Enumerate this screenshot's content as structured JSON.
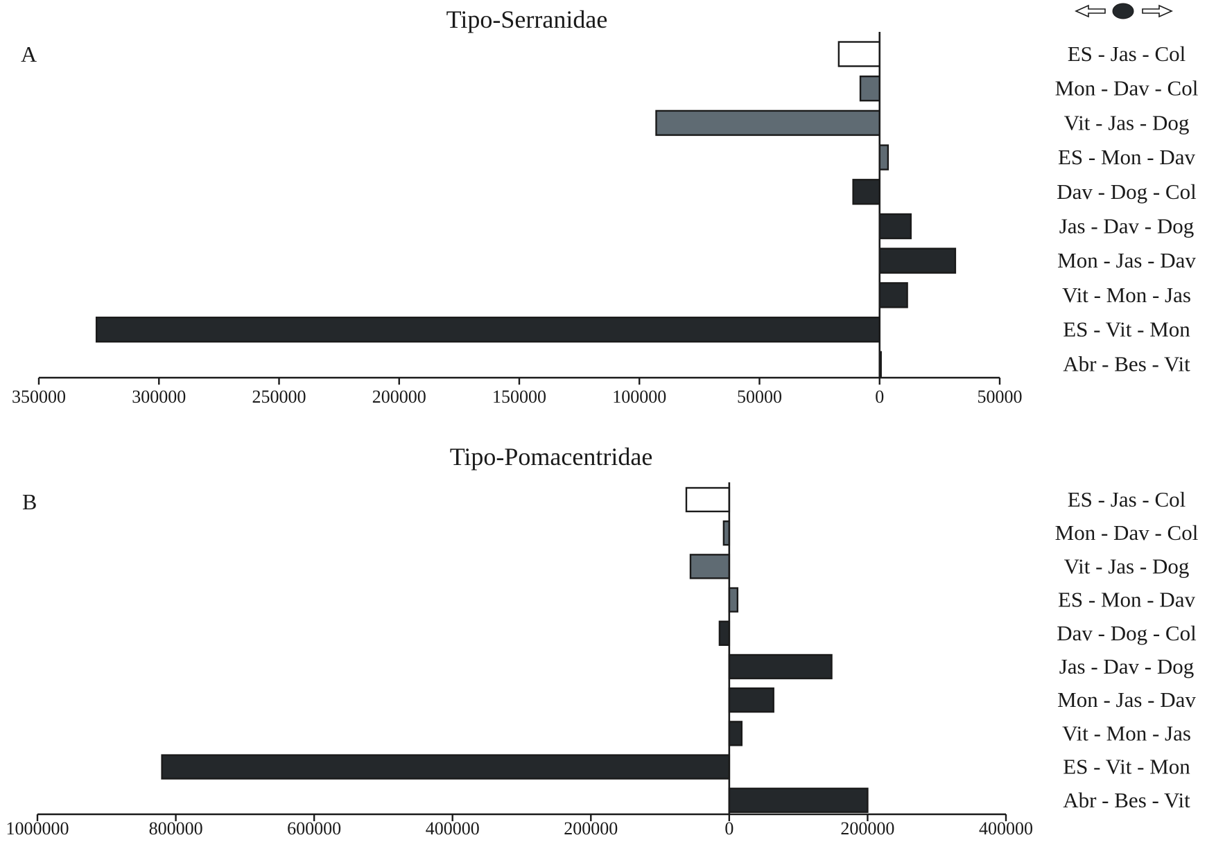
{
  "legend": {
    "icons": [
      "left-arrow-icon",
      "black-dot-icon",
      "right-arrow-icon"
    ]
  },
  "colors": {
    "white_bar": "#ffffff",
    "gray_bar": "#5f6b73",
    "black_bar": "#24282b",
    "stroke": "#1a1a1a"
  },
  "chart_data": [
    {
      "type": "bar",
      "orientation": "horizontal",
      "title": "Tipo-Serranidae",
      "panel": "A",
      "categories": [
        "ES - Jas - Col",
        "Mon - Dav - Col",
        "Vit - Jas - Dog",
        "ES - Mon - Dav",
        "Dav - Dog - Col",
        "Jas - Dav - Dog",
        "Mon - Jas - Dav",
        "Vit - Mon - Jas",
        "ES - Vit - Mon",
        "Abr - Bes - Vit"
      ],
      "values": [
        -17000,
        -8000,
        -93000,
        3500,
        -11000,
        13000,
        31500,
        11500,
        -326000,
        500
      ],
      "fill": [
        "white",
        "gray",
        "gray",
        "gray",
        "black",
        "black",
        "black",
        "black",
        "black",
        "black"
      ],
      "xlim": [
        -350000,
        50000
      ],
      "ticks": [
        -350000,
        -300000,
        -250000,
        -200000,
        -150000,
        -100000,
        -50000,
        0,
        50000
      ],
      "tick_labels": [
        "350000",
        "300000",
        "250000",
        "200000",
        "150000",
        "100000",
        "50000",
        "0",
        "50000"
      ]
    },
    {
      "type": "bar",
      "orientation": "horizontal",
      "title": "Tipo-Pomacentridae",
      "panel": "B",
      "categories": [
        "ES - Jas - Col",
        "Mon - Dav - Col",
        "Vit - Jas - Dog",
        "ES - Mon - Dav",
        "Dav - Dog - Col",
        "Jas - Dav - Dog",
        "Mon - Jas - Dav",
        "Vit - Mon - Jas",
        "ES - Vit - Mon",
        "Abr - Bes - Vit"
      ],
      "values": [
        -62000,
        -8000,
        -56000,
        12000,
        -14000,
        148000,
        64000,
        18000,
        -820000,
        200000
      ],
      "fill": [
        "white",
        "gray",
        "gray",
        "gray",
        "black",
        "black",
        "black",
        "black",
        "black",
        "black"
      ],
      "xlim": [
        -1000000,
        400000
      ],
      "ticks": [
        -1000000,
        -800000,
        -600000,
        -400000,
        -200000,
        0,
        200000,
        400000
      ],
      "tick_labels": [
        "1000000",
        "800000",
        "600000",
        "400000",
        "200000",
        "0",
        "200000",
        "400000"
      ]
    }
  ]
}
